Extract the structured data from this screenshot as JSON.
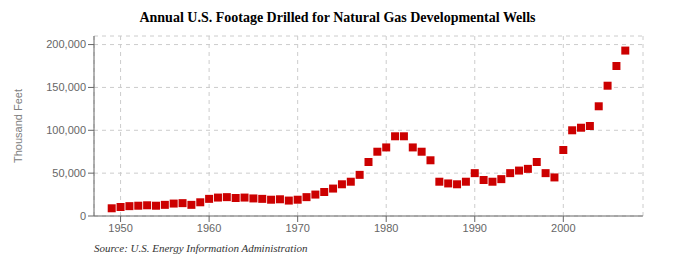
{
  "chart_data": {
    "type": "scatter",
    "title": "Annual U.S. Footage Drilled for Natural Gas Developmental Wells",
    "y_label": "Thousand Feet",
    "annotations": [
      "Source: U.S. Energy Information Administration"
    ],
    "x": [
      1949,
      1950,
      1951,
      1952,
      1953,
      1954,
      1955,
      1956,
      1957,
      1958,
      1959,
      1960,
      1961,
      1962,
      1963,
      1964,
      1965,
      1966,
      1967,
      1968,
      1969,
      1970,
      1971,
      1972,
      1973,
      1974,
      1975,
      1976,
      1977,
      1978,
      1979,
      1980,
      1981,
      1982,
      1983,
      1984,
      1985,
      1986,
      1987,
      1988,
      1989,
      1990,
      1991,
      1992,
      1993,
      1994,
      1995,
      1996,
      1997,
      1998,
      1999,
      2000,
      2001,
      2002,
      2003,
      2004,
      2005,
      2006,
      2007
    ],
    "values": [
      9000,
      10500,
      11500,
      12000,
      12500,
      12000,
      13000,
      14500,
      15000,
      13000,
      16000,
      20000,
      21500,
      22000,
      21000,
      21500,
      20500,
      20000,
      19000,
      19500,
      18000,
      19000,
      22000,
      25000,
      28000,
      32000,
      37000,
      40000,
      48000,
      63000,
      75000,
      80000,
      93000,
      93000,
      80000,
      75000,
      65000,
      40000,
      38000,
      37000,
      40000,
      50000,
      42000,
      40000,
      43000,
      50000,
      53000,
      55000,
      63000,
      50000,
      45000,
      77000,
      100000,
      103000,
      105000,
      128000,
      152000,
      175000,
      193000
    ],
    "color": "#CC0000",
    "marker": "square",
    "xlim": [
      1947,
      2009
    ],
    "xticks": [
      1950,
      1960,
      1970,
      1980,
      1990,
      2000
    ],
    "ylim": [
      0,
      210000
    ],
    "yticks": [
      0,
      {
        "value": 50000,
        "label": "50,000"
      },
      {
        "value": 100000,
        "label": "100,000"
      },
      {
        "value": 150000,
        "label": "150,000"
      },
      {
        "value": 200000,
        "label": "200,000"
      }
    ],
    "grid": true
  }
}
